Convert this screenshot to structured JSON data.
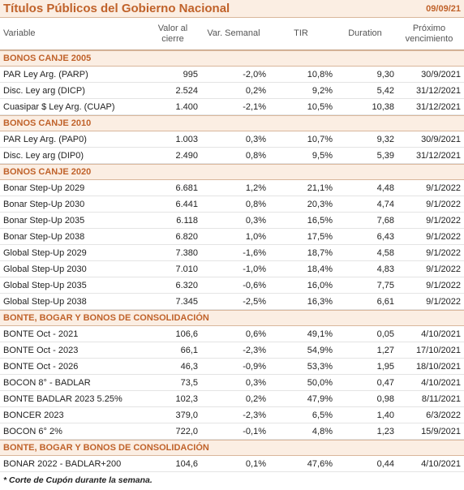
{
  "header": {
    "title": "Títulos Públicos del Gobierno Nacional",
    "date": "09/09/21"
  },
  "columns": [
    "Variable",
    "Valor al cierre",
    "Var. Semanal",
    "TIR",
    "Duration",
    "Próximo vencimiento"
  ],
  "sections": [
    {
      "title": "BONOS CANJE 2005",
      "rows": [
        [
          "PAR Ley Arg. (PARP)",
          "995",
          "-2,0%",
          "10,8%",
          "9,30",
          "30/9/2021"
        ],
        [
          "Disc. Ley arg (DICP)",
          "2.524",
          "0,2%",
          "9,2%",
          "5,42",
          "31/12/2021"
        ],
        [
          "Cuasipar $ Ley Arg. (CUAP)",
          "1.400",
          "-2,1%",
          "10,5%",
          "10,38",
          "31/12/2021"
        ]
      ]
    },
    {
      "title": "BONOS CANJE 2010",
      "rows": [
        [
          "PAR Ley Arg. (PAP0)",
          "1.003",
          "0,3%",
          "10,7%",
          "9,32",
          "30/9/2021"
        ],
        [
          "Disc. Ley arg (DIP0)",
          "2.490",
          "0,8%",
          "9,5%",
          "5,39",
          "31/12/2021"
        ]
      ]
    },
    {
      "title": "BONOS CANJE 2020",
      "rows": [
        [
          "Bonar Step-Up 2029",
          "6.681",
          "1,2%",
          "21,1%",
          "4,48",
          "9/1/2022"
        ],
        [
          "Bonar Step-Up 2030",
          "6.441",
          "0,8%",
          "20,3%",
          "4,74",
          "9/1/2022"
        ],
        [
          "Bonar Step-Up 2035",
          "6.118",
          "0,3%",
          "16,5%",
          "7,68",
          "9/1/2022"
        ],
        [
          "Bonar Step-Up 2038",
          "6.820",
          "1,0%",
          "17,5%",
          "6,43",
          "9/1/2022"
        ],
        [
          "Global Step-Up 2029",
          "7.380",
          "-1,6%",
          "18,7%",
          "4,58",
          "9/1/2022"
        ],
        [
          "Global Step-Up 2030",
          "7.010",
          "-1,0%",
          "18,4%",
          "4,83",
          "9/1/2022"
        ],
        [
          "Global Step-Up 2035",
          "6.320",
          "-0,6%",
          "16,0%",
          "7,75",
          "9/1/2022"
        ],
        [
          "Global Step-Up 2038",
          "7.345",
          "-2,5%",
          "16,3%",
          "6,61",
          "9/1/2022"
        ]
      ]
    },
    {
      "title": "BONTE, BOGAR Y BONOS DE CONSOLIDACIÓN",
      "rows": [
        [
          "BONTE Oct - 2021",
          "106,6",
          "0,6%",
          "49,1%",
          "0,05",
          "4/10/2021"
        ],
        [
          "BONTE Oct - 2023",
          "66,1",
          "-2,3%",
          "54,9%",
          "1,27",
          "17/10/2021"
        ],
        [
          "BONTE Oct - 2026",
          "46,3",
          "-0,9%",
          "53,3%",
          "1,95",
          "18/10/2021"
        ],
        [
          "BOCON 8° - BADLAR",
          "73,5",
          "0,3%",
          "50,0%",
          "0,47",
          "4/10/2021"
        ],
        [
          "BONTE BADLAR 2023 5.25%",
          "102,3",
          "0,2%",
          "47,9%",
          "0,98",
          "8/11/2021"
        ],
        [
          "BONCER 2023",
          "379,0",
          "-2,3%",
          "6,5%",
          "1,40",
          "6/3/2022"
        ],
        [
          "BOCON 6° 2%",
          "722,0",
          "-0,1%",
          "4,8%",
          "1,23",
          "15/9/2021"
        ]
      ]
    },
    {
      "title": "BONTE, BOGAR Y BONOS DE CONSOLIDACIÓN",
      "rows": [
        [
          "BONAR 2022 - BADLAR+200",
          "104,6",
          "0,1%",
          "47,6%",
          "0,44",
          "4/10/2021"
        ]
      ]
    }
  ],
  "footnote": "* Corte de Cupón durante la semana."
}
